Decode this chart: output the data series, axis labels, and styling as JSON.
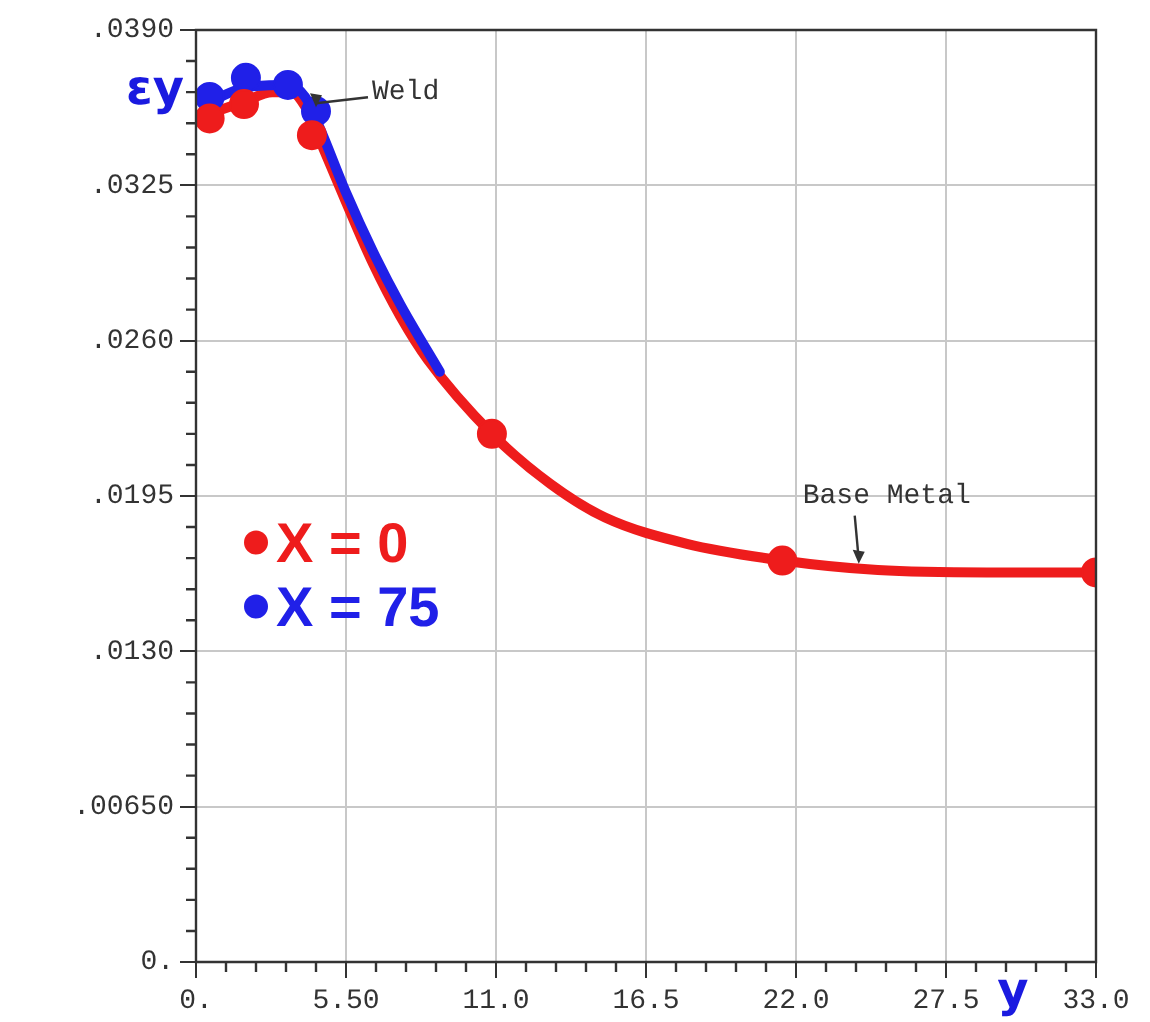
{
  "chart_data": {
    "type": "scatter",
    "ylabel": "εy",
    "xlabel": "y",
    "xlim": [
      0,
      33
    ],
    "xticks": [
      {
        "value": 0,
        "label": "0."
      },
      {
        "value": 5.5,
        "label": "5.50"
      },
      {
        "value": 11,
        "label": "11.0"
      },
      {
        "value": 16.5,
        "label": "16.5"
      },
      {
        "value": 22,
        "label": "22.0"
      },
      {
        "value": 27.5,
        "label": "27.5"
      },
      {
        "value": 33,
        "label": "33.0"
      }
    ],
    "ylim": [
      0,
      0.039
    ],
    "yticks": [
      {
        "value": 0,
        "label": "0."
      },
      {
        "value": 0.0065,
        "label": ".00650"
      },
      {
        "value": 0.013,
        "label": ".0130"
      },
      {
        "value": 0.0195,
        "label": ".0195"
      },
      {
        "value": 0.026,
        "label": ".0260"
      },
      {
        "value": 0.0325,
        "label": ".0325"
      },
      {
        "value": 0.039,
        "label": ".0390"
      }
    ],
    "grid": true,
    "legend": "center left",
    "series": [
      {
        "type": "line",
        "color": "#2020e8",
        "x": [
          0.5,
          1.83,
          3.37,
          4.0,
          4.5,
          5.5,
          6.5,
          7.5,
          8.94
        ],
        "values": [
          0.036,
          0.0366,
          0.0367,
          0.0362,
          0.035,
          0.0322,
          0.0297,
          0.0275,
          0.0247
        ]
      },
      {
        "type": "line",
        "color": "#ee1c1c",
        "x": [
          0.5,
          1.76,
          2.8,
          3.5,
          4.0,
          4.5,
          5.5,
          6.5,
          7.5,
          8.5,
          10.85,
          13,
          15,
          18,
          21.5,
          25,
          29,
          33
        ],
        "values": [
          0.0355,
          0.036,
          0.0364,
          0.0364,
          0.0358,
          0.0345,
          0.0318,
          0.0292,
          0.027,
          0.0252,
          0.0221,
          0.02,
          0.0186,
          0.0175,
          0.0168,
          0.0164,
          0.0163,
          0.0163
        ]
      },
      {
        "name": "X = 0",
        "color": "#ee1c1c",
        "x": [
          0.5,
          1.76,
          4.25,
          10.85,
          21.5,
          33
        ],
        "values": [
          0.0353,
          0.0359,
          0.0346,
          0.0221,
          0.0168,
          0.0163
        ]
      },
      {
        "name": "X = 75",
        "color": "#2020e8",
        "x": [
          0.5,
          1.83,
          3.37,
          4.4
        ],
        "values": [
          0.0362,
          0.037,
          0.0367,
          0.0356
        ]
      }
    ],
    "annotations": [
      {
        "text": "Weld",
        "x": 4.4,
        "y": 0.0356
      },
      {
        "text": "Base Metal",
        "x": 24.3,
        "y": 0.0165
      }
    ]
  }
}
